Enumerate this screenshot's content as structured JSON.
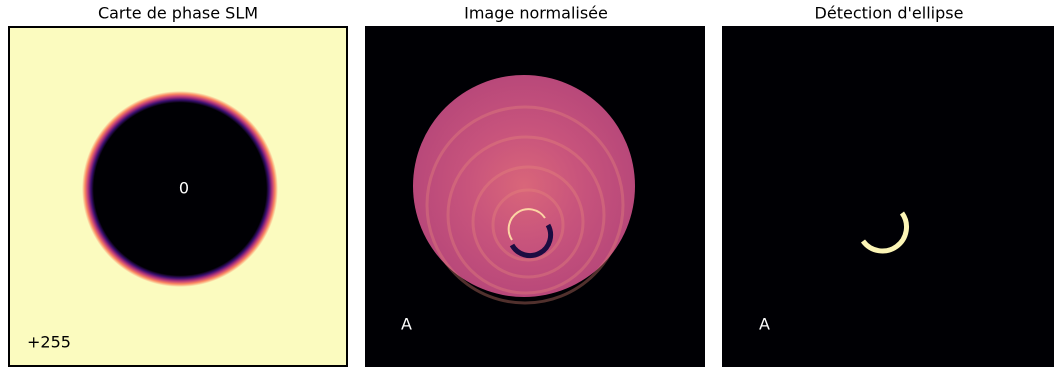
{
  "panels": [
    {
      "title": "Carte de phase SLM",
      "labels": [
        "0",
        "+255"
      ]
    },
    {
      "title": "Image normalisée",
      "labels": [
        "A"
      ]
    },
    {
      "title": "Détection d'ellipse",
      "labels": [
        "A"
      ]
    }
  ]
}
